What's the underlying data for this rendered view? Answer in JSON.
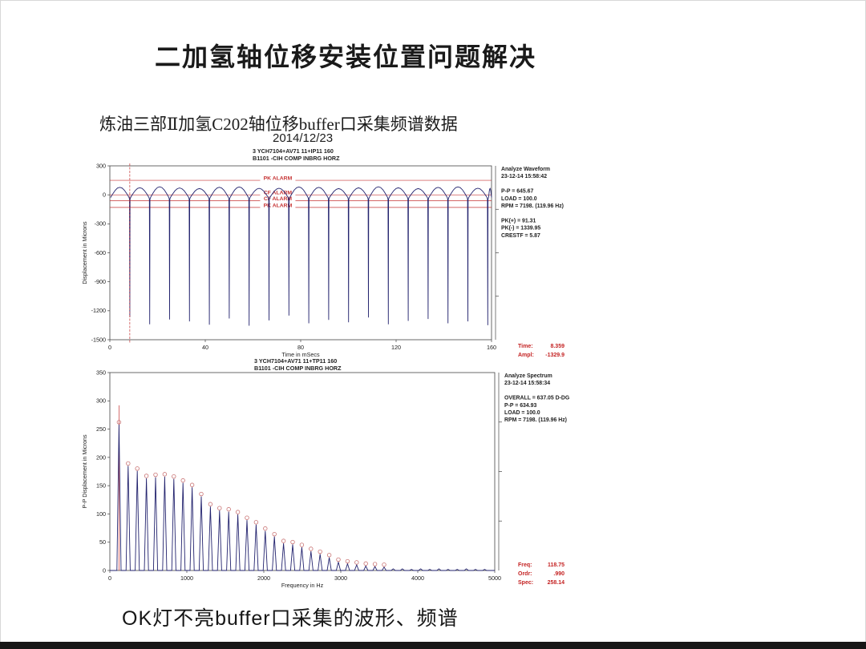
{
  "page": {
    "title": "二加氢轴位移安装位置问题解决",
    "subtitle": "炼油三部Ⅱ加氢C202轴位移buffer口采集频谱数据",
    "date": "2014/12/23",
    "caption": "OK灯不亮buffer口采集的波形、频谱"
  },
  "colors": {
    "trace": "#23236e",
    "alarm_red": "#c63434",
    "readout_red": "#c42222",
    "axis": "#444444",
    "text": "#222222",
    "marker": "#c97272"
  },
  "chart_data": [
    {
      "type": "line",
      "role": "waveform",
      "header_line1": "3    YCH7104+AV71 11+IP11 160",
      "header_line2": "B1101    -CIH   COMP INBRG HORZ",
      "xlabel": "Time in mSecs",
      "ylabel": "Displacement in Microns",
      "xlim": [
        0,
        160
      ],
      "xticks": [
        0,
        40,
        80,
        120,
        160
      ],
      "ylim": [
        -1500,
        300
      ],
      "yticks": [
        300,
        0,
        -300,
        -600,
        -900,
        -1200,
        -1500
      ],
      "grid": false,
      "alarm_lines": [
        {
          "label": "PK ALARM",
          "value": 150
        },
        {
          "label": "CF ALARM",
          "value": 0
        },
        {
          "label": "CF ALARM",
          "value": -60
        },
        {
          "label": "PK ALARM",
          "value": -130
        }
      ],
      "cursor_time_ms": 8.359,
      "first_spike_ms": 8.359,
      "spike_period_ms": 8.336,
      "hump_peak_microns": 82,
      "spike_depths_microns": [
        -1265,
        -1340,
        -1290,
        -1310,
        -1345,
        -1280,
        -1355,
        -1300,
        -1250,
        -1330,
        -1295,
        -1320,
        -1270,
        -1340,
        -1305,
        -1285,
        -1330,
        -1310,
        -1350
      ],
      "info_lines": [
        "Analyze Waveform",
        " 23-12-14   15:58:42",
        "",
        "P-P  =  645.67",
        "LOAD = 100.0",
        "RPM = 7198. (119.96 Hz)",
        "",
        "PK(+) = 91.31",
        "PK(-) = 1339.95",
        "CRESTF = 5.87"
      ],
      "readout": [
        {
          "label": "Time:",
          "value": "8.359"
        },
        {
          "label": "Ampl:",
          "value": "-1329.9"
        }
      ]
    },
    {
      "type": "bar",
      "role": "spectrum",
      "header_line1": "3    YCH7104+AV71 11+TP11 160",
      "header_line2": "B1101    -CIH   COMP INBRG HORZ",
      "xlabel": "Frequency in Hz",
      "ylabel": "P-P Displacement in Microns",
      "xlim": [
        0,
        5000
      ],
      "xticks": [
        0,
        1000,
        2000,
        3000,
        4000,
        5000
      ],
      "ylim": [
        0,
        350
      ],
      "yticks": [
        0,
        50,
        100,
        150,
        200,
        250,
        300,
        350
      ],
      "grid": false,
      "fundamental_hz": 118.75,
      "harmonic_amps": [
        258,
        185,
        176,
        163,
        165,
        166,
        162,
        155,
        147,
        131,
        113,
        106,
        104,
        99,
        89,
        81,
        70,
        60,
        48,
        46,
        41,
        34,
        29,
        23,
        15,
        12,
        10,
        8,
        7,
        6,
        3,
        3,
        2,
        3,
        2,
        3,
        2,
        2,
        3,
        2,
        2
      ],
      "cursor_freq_hz": 118.75,
      "cursor_top_microns": 292,
      "info_lines": [
        "Analyze Spectrum",
        " 23-12-14   15:58:34",
        "",
        "OVERALL = 637.05 D-DG",
        " P-P = 634.93",
        " LOAD = 100.0",
        " RPM = 7198. (119.96 Hz)"
      ],
      "readout": [
        {
          "label": "Freq:",
          "value": "118.75"
        },
        {
          "label": "Ordr:",
          "value": ".990"
        },
        {
          "label": "Spec:",
          "value": "258.14"
        }
      ]
    }
  ]
}
